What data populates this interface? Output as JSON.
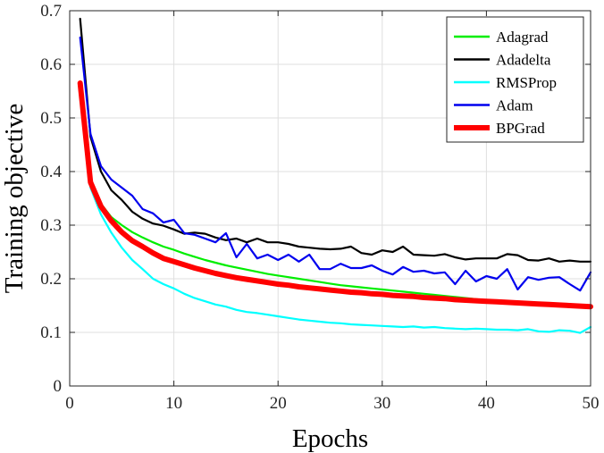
{
  "chart_data": {
    "type": "line",
    "xlabel": "Epochs",
    "ylabel": "Training objective",
    "xlim": [
      0,
      50
    ],
    "ylim": [
      0,
      0.7
    ],
    "xticks": [
      0,
      10,
      20,
      30,
      40,
      50
    ],
    "yticks": [
      0,
      0.1,
      0.2,
      0.3,
      0.4,
      0.5,
      0.6,
      0.7
    ],
    "grid": true,
    "legend_position": "top-right",
    "x": [
      1,
      2,
      3,
      4,
      5,
      6,
      7,
      8,
      9,
      10,
      11,
      12,
      13,
      14,
      15,
      16,
      17,
      18,
      19,
      20,
      21,
      22,
      23,
      24,
      25,
      26,
      27,
      28,
      29,
      30,
      31,
      32,
      33,
      34,
      35,
      36,
      37,
      38,
      39,
      40,
      41,
      42,
      43,
      44,
      45,
      46,
      47,
      48,
      49,
      50
    ],
    "series": [
      {
        "name": "Adagrad",
        "color": "#00ee00",
        "values": [
          0.55,
          0.38,
          0.34,
          0.315,
          0.3,
          0.287,
          0.277,
          0.268,
          0.26,
          0.254,
          0.247,
          0.241,
          0.235,
          0.23,
          0.225,
          0.221,
          0.217,
          0.213,
          0.209,
          0.206,
          0.203,
          0.2,
          0.197,
          0.194,
          0.191,
          0.188,
          0.186,
          0.184,
          0.182,
          0.18,
          0.178,
          0.176,
          0.174,
          0.172,
          0.17,
          0.168,
          0.166,
          0.164,
          0.162,
          0.16,
          0.159,
          0.157,
          0.155,
          0.154,
          0.152,
          0.151,
          0.149,
          0.148,
          0.147,
          0.146
        ]
      },
      {
        "name": "Adadelta",
        "color": "#000000",
        "values": [
          0.685,
          0.465,
          0.4,
          0.365,
          0.347,
          0.325,
          0.312,
          0.303,
          0.299,
          0.292,
          0.284,
          0.286,
          0.284,
          0.277,
          0.272,
          0.275,
          0.268,
          0.275,
          0.268,
          0.268,
          0.265,
          0.26,
          0.258,
          0.256,
          0.255,
          0.256,
          0.26,
          0.248,
          0.245,
          0.253,
          0.25,
          0.26,
          0.245,
          0.244,
          0.243,
          0.246,
          0.24,
          0.236,
          0.238,
          0.238,
          0.238,
          0.246,
          0.244,
          0.235,
          0.234,
          0.238,
          0.232,
          0.234,
          0.232,
          0.232
        ]
      },
      {
        "name": "RMSProp",
        "color": "#00ffff",
        "values": [
          0.55,
          0.37,
          0.32,
          0.286,
          0.258,
          0.235,
          0.218,
          0.2,
          0.19,
          0.182,
          0.172,
          0.164,
          0.158,
          0.152,
          0.148,
          0.142,
          0.138,
          0.136,
          0.133,
          0.13,
          0.127,
          0.124,
          0.122,
          0.12,
          0.118,
          0.117,
          0.115,
          0.114,
          0.113,
          0.112,
          0.111,
          0.11,
          0.111,
          0.109,
          0.11,
          0.108,
          0.107,
          0.106,
          0.107,
          0.106,
          0.105,
          0.105,
          0.104,
          0.106,
          0.102,
          0.101,
          0.104,
          0.103,
          0.099,
          0.11
        ]
      },
      {
        "name": "Adam",
        "color": "#0000ee",
        "values": [
          0.65,
          0.47,
          0.41,
          0.385,
          0.37,
          0.355,
          0.33,
          0.322,
          0.305,
          0.31,
          0.285,
          0.282,
          0.275,
          0.268,
          0.285,
          0.24,
          0.265,
          0.238,
          0.245,
          0.235,
          0.245,
          0.232,
          0.245,
          0.218,
          0.218,
          0.228,
          0.22,
          0.22,
          0.225,
          0.215,
          0.208,
          0.222,
          0.213,
          0.215,
          0.21,
          0.212,
          0.19,
          0.215,
          0.195,
          0.205,
          0.2,
          0.218,
          0.18,
          0.203,
          0.198,
          0.202,
          0.203,
          0.19,
          0.178,
          0.212
        ]
      },
      {
        "name": "BPGrad",
        "color": "#ff0000",
        "values": [
          0.565,
          0.38,
          0.335,
          0.308,
          0.287,
          0.271,
          0.26,
          0.248,
          0.238,
          0.232,
          0.226,
          0.22,
          0.215,
          0.21,
          0.206,
          0.202,
          0.199,
          0.196,
          0.193,
          0.19,
          0.188,
          0.185,
          0.183,
          0.181,
          0.179,
          0.177,
          0.175,
          0.174,
          0.172,
          0.171,
          0.169,
          0.168,
          0.167,
          0.165,
          0.164,
          0.163,
          0.161,
          0.16,
          0.159,
          0.158,
          0.157,
          0.156,
          0.155,
          0.154,
          0.153,
          0.152,
          0.151,
          0.15,
          0.149,
          0.148
        ]
      }
    ]
  }
}
